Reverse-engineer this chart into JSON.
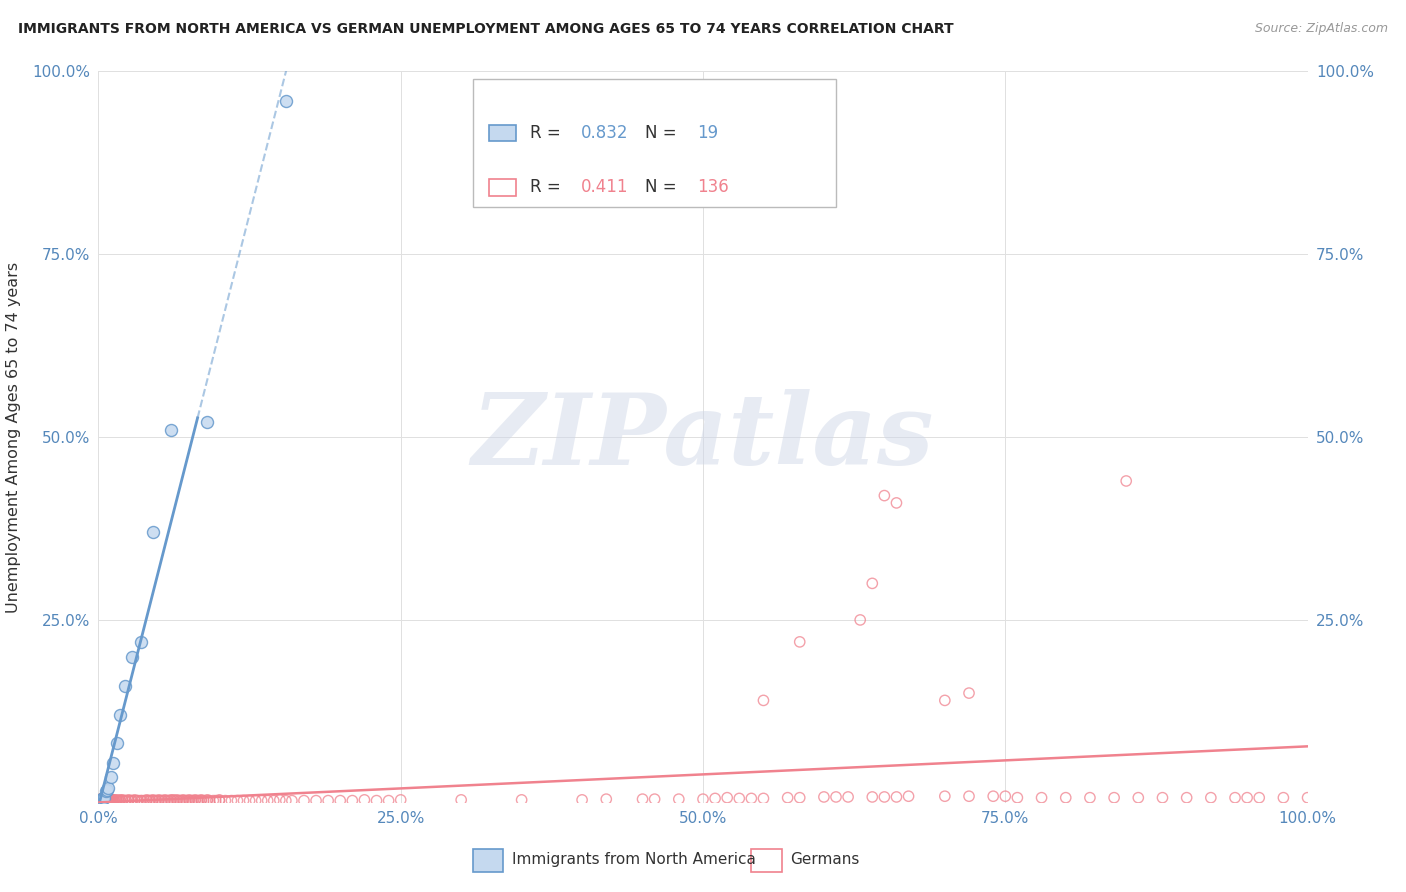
{
  "title": "IMMIGRANTS FROM NORTH AMERICA VS GERMAN UNEMPLOYMENT AMONG AGES 65 TO 74 YEARS CORRELATION CHART",
  "source": "Source: ZipAtlas.com",
  "ylabel": "Unemployment Among Ages 65 to 74 years",
  "legend_label_blue": "Immigrants from North America",
  "legend_label_pink": "Germans",
  "R_blue": 0.832,
  "N_blue": 19,
  "R_pink": 0.411,
  "N_pink": 136,
  "blue_color": "#6699cc",
  "blue_fill": "#c5d9ef",
  "pink_color": "#f0828e",
  "pink_fill": "none",
  "watermark": "ZIPatlas",
  "background_color": "#ffffff",
  "grid_color": "#e0e0e0",
  "blue_pts": [
    [
      0.001,
      0.003
    ],
    [
      0.002,
      0.004
    ],
    [
      0.003,
      0.005
    ],
    [
      0.004,
      0.006
    ],
    [
      0.005,
      0.007
    ],
    [
      0.006,
      0.016
    ],
    [
      0.007,
      0.018
    ],
    [
      0.008,
      0.02
    ],
    [
      0.01,
      0.035
    ],
    [
      0.012,
      0.055
    ],
    [
      0.015,
      0.082
    ],
    [
      0.018,
      0.12
    ],
    [
      0.022,
      0.16
    ],
    [
      0.028,
      0.2
    ],
    [
      0.035,
      0.22
    ],
    [
      0.045,
      0.37
    ],
    [
      0.06,
      0.51
    ],
    [
      0.09,
      0.52
    ],
    [
      0.155,
      0.96
    ]
  ],
  "pink_pts": [
    [
      0.001,
      0.003
    ],
    [
      0.001,
      0.004
    ],
    [
      0.002,
      0.003
    ],
    [
      0.002,
      0.004
    ],
    [
      0.002,
      0.005
    ],
    [
      0.003,
      0.003
    ],
    [
      0.003,
      0.004
    ],
    [
      0.003,
      0.005
    ],
    [
      0.003,
      0.006
    ],
    [
      0.004,
      0.003
    ],
    [
      0.004,
      0.004
    ],
    [
      0.004,
      0.005
    ],
    [
      0.005,
      0.003
    ],
    [
      0.005,
      0.004
    ],
    [
      0.005,
      0.005
    ],
    [
      0.005,
      0.006
    ],
    [
      0.006,
      0.003
    ],
    [
      0.006,
      0.004
    ],
    [
      0.006,
      0.005
    ],
    [
      0.007,
      0.003
    ],
    [
      0.007,
      0.004
    ],
    [
      0.007,
      0.005
    ],
    [
      0.008,
      0.003
    ],
    [
      0.008,
      0.004
    ],
    [
      0.008,
      0.005
    ],
    [
      0.009,
      0.003
    ],
    [
      0.009,
      0.004
    ],
    [
      0.01,
      0.003
    ],
    [
      0.01,
      0.004
    ],
    [
      0.01,
      0.005
    ],
    [
      0.011,
      0.003
    ],
    [
      0.011,
      0.004
    ],
    [
      0.012,
      0.003
    ],
    [
      0.012,
      0.004
    ],
    [
      0.013,
      0.003
    ],
    [
      0.013,
      0.004
    ],
    [
      0.014,
      0.003
    ],
    [
      0.015,
      0.003
    ],
    [
      0.015,
      0.004
    ],
    [
      0.016,
      0.003
    ],
    [
      0.017,
      0.003
    ],
    [
      0.018,
      0.003
    ],
    [
      0.018,
      0.004
    ],
    [
      0.02,
      0.003
    ],
    [
      0.02,
      0.004
    ],
    [
      0.022,
      0.003
    ],
    [
      0.023,
      0.003
    ],
    [
      0.025,
      0.003
    ],
    [
      0.025,
      0.004
    ],
    [
      0.027,
      0.003
    ],
    [
      0.028,
      0.003
    ],
    [
      0.03,
      0.003
    ],
    [
      0.03,
      0.004
    ],
    [
      0.032,
      0.003
    ],
    [
      0.033,
      0.003
    ],
    [
      0.035,
      0.003
    ],
    [
      0.036,
      0.003
    ],
    [
      0.038,
      0.003
    ],
    [
      0.04,
      0.003
    ],
    [
      0.04,
      0.004
    ],
    [
      0.042,
      0.003
    ],
    [
      0.043,
      0.003
    ],
    [
      0.045,
      0.003
    ],
    [
      0.045,
      0.004
    ],
    [
      0.047,
      0.003
    ],
    [
      0.048,
      0.003
    ],
    [
      0.05,
      0.003
    ],
    [
      0.05,
      0.004
    ],
    [
      0.052,
      0.003
    ],
    [
      0.053,
      0.003
    ],
    [
      0.055,
      0.003
    ],
    [
      0.055,
      0.004
    ],
    [
      0.057,
      0.003
    ],
    [
      0.058,
      0.003
    ],
    [
      0.06,
      0.003
    ],
    [
      0.06,
      0.004
    ],
    [
      0.062,
      0.004
    ],
    [
      0.063,
      0.003
    ],
    [
      0.065,
      0.003
    ],
    [
      0.065,
      0.004
    ],
    [
      0.067,
      0.003
    ],
    [
      0.068,
      0.003
    ],
    [
      0.07,
      0.003
    ],
    [
      0.07,
      0.004
    ],
    [
      0.072,
      0.003
    ],
    [
      0.073,
      0.003
    ],
    [
      0.075,
      0.003
    ],
    [
      0.075,
      0.004
    ],
    [
      0.077,
      0.003
    ],
    [
      0.078,
      0.003
    ],
    [
      0.08,
      0.003
    ],
    [
      0.08,
      0.004
    ],
    [
      0.082,
      0.003
    ],
    [
      0.083,
      0.003
    ],
    [
      0.085,
      0.003
    ],
    [
      0.085,
      0.004
    ],
    [
      0.087,
      0.003
    ],
    [
      0.09,
      0.003
    ],
    [
      0.09,
      0.004
    ],
    [
      0.092,
      0.003
    ],
    [
      0.095,
      0.003
    ],
    [
      0.097,
      0.003
    ],
    [
      0.1,
      0.003
    ],
    [
      0.1,
      0.004
    ],
    [
      0.105,
      0.003
    ],
    [
      0.11,
      0.003
    ],
    [
      0.115,
      0.003
    ],
    [
      0.12,
      0.003
    ],
    [
      0.125,
      0.003
    ],
    [
      0.13,
      0.003
    ],
    [
      0.135,
      0.003
    ],
    [
      0.14,
      0.003
    ],
    [
      0.145,
      0.003
    ],
    [
      0.15,
      0.004
    ],
    [
      0.155,
      0.003
    ],
    [
      0.16,
      0.003
    ],
    [
      0.17,
      0.003
    ],
    [
      0.18,
      0.003
    ],
    [
      0.19,
      0.003
    ],
    [
      0.2,
      0.003
    ],
    [
      0.21,
      0.003
    ],
    [
      0.22,
      0.004
    ],
    [
      0.23,
      0.003
    ],
    [
      0.24,
      0.003
    ],
    [
      0.25,
      0.004
    ],
    [
      0.3,
      0.004
    ],
    [
      0.35,
      0.004
    ],
    [
      0.4,
      0.004
    ],
    [
      0.42,
      0.005
    ],
    [
      0.45,
      0.005
    ],
    [
      0.46,
      0.005
    ],
    [
      0.48,
      0.005
    ],
    [
      0.5,
      0.005
    ],
    [
      0.51,
      0.006
    ],
    [
      0.52,
      0.007
    ],
    [
      0.53,
      0.006
    ],
    [
      0.54,
      0.006
    ],
    [
      0.55,
      0.006
    ],
    [
      0.55,
      0.14
    ],
    [
      0.57,
      0.007
    ],
    [
      0.58,
      0.007
    ],
    [
      0.58,
      0.22
    ],
    [
      0.6,
      0.008
    ],
    [
      0.61,
      0.008
    ],
    [
      0.62,
      0.008
    ],
    [
      0.63,
      0.25
    ],
    [
      0.64,
      0.008
    ],
    [
      0.64,
      0.3
    ],
    [
      0.65,
      0.008
    ],
    [
      0.65,
      0.42
    ],
    [
      0.66,
      0.008
    ],
    [
      0.66,
      0.41
    ],
    [
      0.67,
      0.009
    ],
    [
      0.7,
      0.009
    ],
    [
      0.7,
      0.14
    ],
    [
      0.72,
      0.009
    ],
    [
      0.72,
      0.15
    ],
    [
      0.74,
      0.009
    ],
    [
      0.75,
      0.009
    ],
    [
      0.76,
      0.007
    ],
    [
      0.78,
      0.007
    ],
    [
      0.8,
      0.007
    ],
    [
      0.82,
      0.007
    ],
    [
      0.84,
      0.007
    ],
    [
      0.85,
      0.44
    ],
    [
      0.86,
      0.007
    ],
    [
      0.88,
      0.007
    ],
    [
      0.9,
      0.007
    ],
    [
      0.92,
      0.007
    ],
    [
      0.94,
      0.007
    ],
    [
      0.95,
      0.007
    ],
    [
      0.96,
      0.007
    ],
    [
      0.98,
      0.007
    ],
    [
      1.0,
      0.007
    ]
  ],
  "xlim": [
    0,
    1.0
  ],
  "ylim": [
    0,
    1.0
  ],
  "xtick_pos": [
    0,
    0.25,
    0.5,
    0.75,
    1.0
  ],
  "ytick_pos": [
    0,
    0.25,
    0.5,
    0.75,
    1.0
  ],
  "xticklabels": [
    "0.0%",
    "25.0%",
    "50.0%",
    "75.0%",
    "100.0%"
  ],
  "yticklabels": [
    "",
    "25.0%",
    "50.0%",
    "75.0%",
    "100.0%"
  ]
}
